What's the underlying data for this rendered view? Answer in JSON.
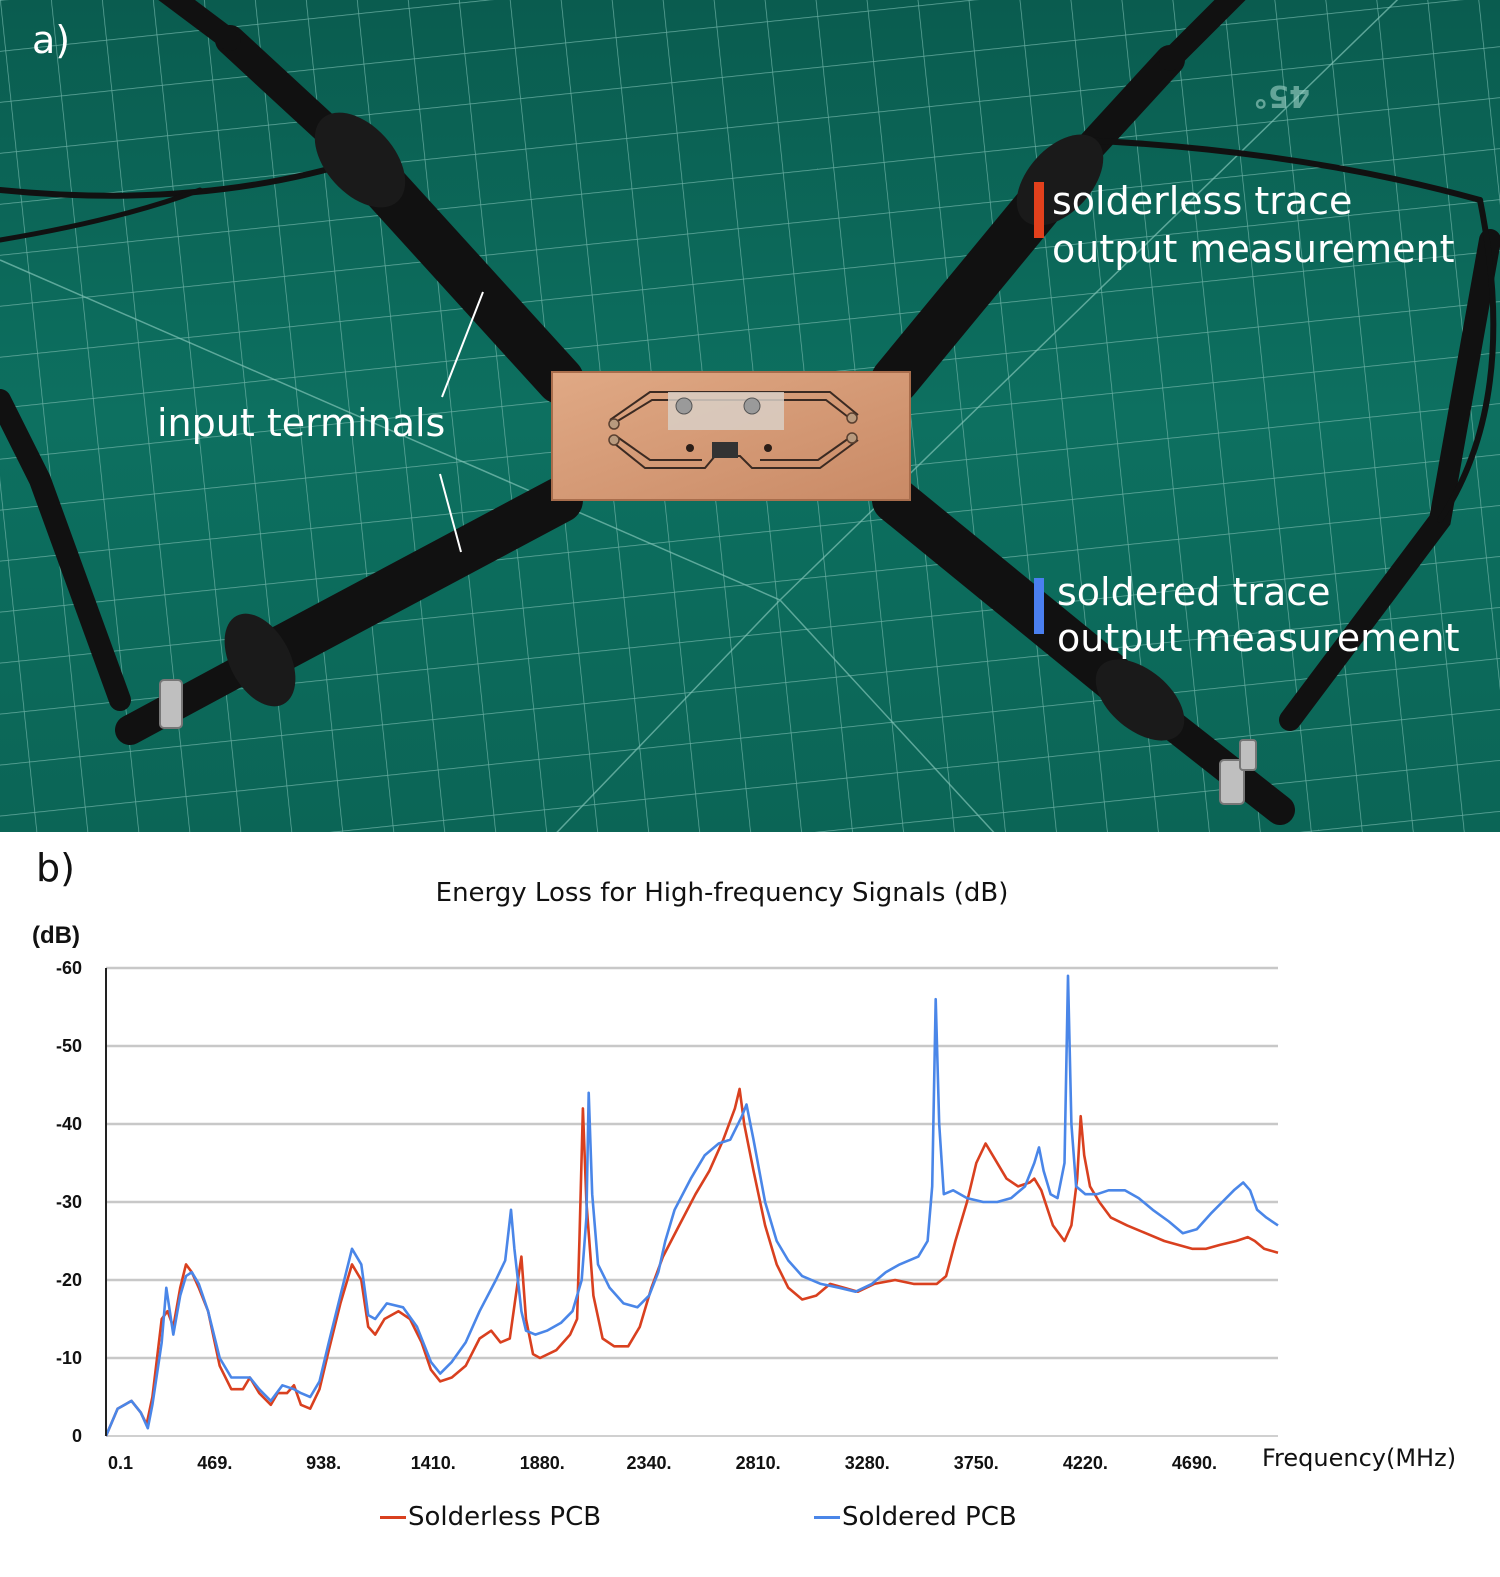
{
  "panel_a": {
    "letter": "a)",
    "labels": {
      "input_terminals": "input terminals",
      "solderless_line1": "solderless trace",
      "solderless_line2": "output measurement",
      "soldered_line1": "soldered trace",
      "soldered_line2": "output measurement"
    },
    "colors": {
      "solderless_marker": "#e2401c",
      "soldered_marker": "#4a7ff0",
      "mat": "#0c6b5c"
    }
  },
  "panel_b": {
    "letter": "b)"
  },
  "chart_data": {
    "type": "line",
    "title": "Energy Loss for High-frequency Signals (dB)",
    "ylabel": "(dB)",
    "xlabel": "Frequency(MHz)",
    "x_range": [
      0.1,
      5050
    ],
    "ylim": [
      0,
      -60
    ],
    "y_ticks": [
      "0",
      "-10",
      "-20",
      "-30",
      "-40",
      "-50",
      "-60"
    ],
    "x_ticks": [
      {
        "label": "0.1",
        "value": 0.1
      },
      {
        "label": "469.",
        "value": 469
      },
      {
        "label": "938.",
        "value": 938
      },
      {
        "label": "1410.",
        "value": 1410
      },
      {
        "label": "1880.",
        "value": 1880
      },
      {
        "label": "2340.",
        "value": 2340
      },
      {
        "label": "2810.",
        "value": 2810
      },
      {
        "label": "3280.",
        "value": 3280
      },
      {
        "label": "3750.",
        "value": 3750
      },
      {
        "label": "4220.",
        "value": 4220
      },
      {
        "label": "4690.",
        "value": 4690
      }
    ],
    "grid": true,
    "legend_position": "bottom",
    "series": [
      {
        "name": "Solderless PCB",
        "color": "#d9401f",
        "points": [
          [
            0.1,
            0
          ],
          [
            50,
            -3.5
          ],
          [
            110,
            -4.5
          ],
          [
            150,
            -3
          ],
          [
            175,
            -1.5
          ],
          [
            200,
            -5
          ],
          [
            240,
            -15
          ],
          [
            265,
            -16
          ],
          [
            290,
            -14
          ],
          [
            320,
            -19
          ],
          [
            345,
            -22
          ],
          [
            370,
            -21
          ],
          [
            400,
            -19
          ],
          [
            440,
            -16
          ],
          [
            490,
            -9
          ],
          [
            540,
            -6
          ],
          [
            590,
            -6
          ],
          [
            620,
            -7.5
          ],
          [
            660,
            -5.5
          ],
          [
            710,
            -4
          ],
          [
            740,
            -5.5
          ],
          [
            780,
            -5.5
          ],
          [
            810,
            -6.5
          ],
          [
            840,
            -4
          ],
          [
            880,
            -3.5
          ],
          [
            920,
            -6
          ],
          [
            960,
            -11
          ],
          [
            1010,
            -17
          ],
          [
            1060,
            -22
          ],
          [
            1100,
            -20
          ],
          [
            1130,
            -14
          ],
          [
            1160,
            -13
          ],
          [
            1200,
            -15
          ],
          [
            1260,
            -16
          ],
          [
            1310,
            -15
          ],
          [
            1360,
            -12
          ],
          [
            1400,
            -8.5
          ],
          [
            1440,
            -7
          ],
          [
            1490,
            -7.5
          ],
          [
            1550,
            -9
          ],
          [
            1610,
            -12.5
          ],
          [
            1660,
            -13.5
          ],
          [
            1700,
            -12
          ],
          [
            1740,
            -12.5
          ],
          [
            1780,
            -21
          ],
          [
            1790,
            -23
          ],
          [
            1810,
            -15
          ],
          [
            1840,
            -10.5
          ],
          [
            1870,
            -10
          ],
          [
            1940,
            -11
          ],
          [
            2000,
            -13
          ],
          [
            2030,
            -15
          ],
          [
            2040,
            -25
          ],
          [
            2055,
            -42
          ],
          [
            2070,
            -30
          ],
          [
            2100,
            -18
          ],
          [
            2140,
            -12.5
          ],
          [
            2190,
            -11.5
          ],
          [
            2250,
            -11.5
          ],
          [
            2300,
            -14
          ],
          [
            2350,
            -19
          ],
          [
            2400,
            -23
          ],
          [
            2470,
            -27
          ],
          [
            2540,
            -31
          ],
          [
            2600,
            -34
          ],
          [
            2660,
            -38
          ],
          [
            2710,
            -42
          ],
          [
            2730,
            -44.5
          ],
          [
            2750,
            -40
          ],
          [
            2790,
            -34
          ],
          [
            2840,
            -27
          ],
          [
            2890,
            -22
          ],
          [
            2940,
            -19
          ],
          [
            3000,
            -17.5
          ],
          [
            3060,
            -18
          ],
          [
            3120,
            -19.5
          ],
          [
            3180,
            -19
          ],
          [
            3240,
            -18.5
          ],
          [
            3310,
            -19.5
          ],
          [
            3400,
            -20
          ],
          [
            3480,
            -19.5
          ],
          [
            3580,
            -19.5
          ],
          [
            3620,
            -20.5
          ],
          [
            3660,
            -25
          ],
          [
            3710,
            -30
          ],
          [
            3750,
            -35
          ],
          [
            3790,
            -37.5
          ],
          [
            3830,
            -35.5
          ],
          [
            3880,
            -33
          ],
          [
            3930,
            -32
          ],
          [
            3980,
            -32.5
          ],
          [
            4000,
            -33
          ],
          [
            4030,
            -31.5
          ],
          [
            4080,
            -27
          ],
          [
            4130,
            -25
          ],
          [
            4160,
            -27
          ],
          [
            4185,
            -33
          ],
          [
            4200,
            -41
          ],
          [
            4215,
            -36
          ],
          [
            4240,
            -32
          ],
          [
            4280,
            -30
          ],
          [
            4330,
            -28
          ],
          [
            4400,
            -27
          ],
          [
            4480,
            -26
          ],
          [
            4560,
            -25
          ],
          [
            4620,
            -24.5
          ],
          [
            4680,
            -24
          ],
          [
            4740,
            -24
          ],
          [
            4800,
            -24.5
          ],
          [
            4870,
            -25
          ],
          [
            4920,
            -25.5
          ],
          [
            4950,
            -25
          ],
          [
            4990,
            -24
          ],
          [
            5050,
            -23.5
          ]
        ]
      },
      {
        "name": "Soldered PCB",
        "color": "#4a86e8",
        "points": [
          [
            0.1,
            0
          ],
          [
            50,
            -3.5
          ],
          [
            110,
            -4.5
          ],
          [
            150,
            -3
          ],
          [
            180,
            -1
          ],
          [
            200,
            -4
          ],
          [
            240,
            -12
          ],
          [
            260,
            -19
          ],
          [
            275,
            -16
          ],
          [
            290,
            -13
          ],
          [
            320,
            -18
          ],
          [
            345,
            -20.5
          ],
          [
            370,
            -21
          ],
          [
            400,
            -19.5
          ],
          [
            440,
            -16
          ],
          [
            490,
            -10
          ],
          [
            540,
            -7.5
          ],
          [
            590,
            -7.5
          ],
          [
            620,
            -7.5
          ],
          [
            660,
            -6
          ],
          [
            710,
            -4.5
          ],
          [
            760,
            -6.5
          ],
          [
            810,
            -6
          ],
          [
            840,
            -5.5
          ],
          [
            880,
            -5
          ],
          [
            920,
            -7
          ],
          [
            960,
            -12
          ],
          [
            1010,
            -18
          ],
          [
            1060,
            -24
          ],
          [
            1100,
            -22
          ],
          [
            1130,
            -15.5
          ],
          [
            1160,
            -15
          ],
          [
            1210,
            -17
          ],
          [
            1280,
            -16.5
          ],
          [
            1340,
            -14
          ],
          [
            1400,
            -9.5
          ],
          [
            1440,
            -8
          ],
          [
            1490,
            -9.5
          ],
          [
            1550,
            -12
          ],
          [
            1610,
            -16
          ],
          [
            1680,
            -20
          ],
          [
            1720,
            -22.5
          ],
          [
            1745,
            -29
          ],
          [
            1760,
            -24
          ],
          [
            1790,
            -16
          ],
          [
            1810,
            -13.5
          ],
          [
            1850,
            -13
          ],
          [
            1900,
            -13.5
          ],
          [
            1960,
            -14.5
          ],
          [
            2010,
            -16
          ],
          [
            2050,
            -20
          ],
          [
            2070,
            -28
          ],
          [
            2080,
            -44
          ],
          [
            2095,
            -31
          ],
          [
            2120,
            -22
          ],
          [
            2170,
            -19
          ],
          [
            2230,
            -17
          ],
          [
            2290,
            -16.5
          ],
          [
            2340,
            -18
          ],
          [
            2380,
            -21
          ],
          [
            2410,
            -25
          ],
          [
            2450,
            -29
          ],
          [
            2520,
            -33
          ],
          [
            2580,
            -36
          ],
          [
            2640,
            -37.5
          ],
          [
            2690,
            -38
          ],
          [
            2740,
            -41
          ],
          [
            2760,
            -42.5
          ],
          [
            2790,
            -38
          ],
          [
            2840,
            -30
          ],
          [
            2890,
            -25
          ],
          [
            2940,
            -22.5
          ],
          [
            3000,
            -20.5
          ],
          [
            3080,
            -19.5
          ],
          [
            3160,
            -19
          ],
          [
            3230,
            -18.5
          ],
          [
            3300,
            -19.5
          ],
          [
            3360,
            -21
          ],
          [
            3420,
            -22
          ],
          [
            3500,
            -23
          ],
          [
            3540,
            -25
          ],
          [
            3560,
            -32
          ],
          [
            3575,
            -56
          ],
          [
            3590,
            -40
          ],
          [
            3610,
            -31
          ],
          [
            3650,
            -31.5
          ],
          [
            3710,
            -30.5
          ],
          [
            3780,
            -30
          ],
          [
            3840,
            -30
          ],
          [
            3900,
            -30.5
          ],
          [
            3960,
            -32
          ],
          [
            4000,
            -35
          ],
          [
            4020,
            -37
          ],
          [
            4040,
            -34
          ],
          [
            4070,
            -31
          ],
          [
            4100,
            -30.5
          ],
          [
            4130,
            -35
          ],
          [
            4145,
            -59
          ],
          [
            4160,
            -40
          ],
          [
            4180,
            -32
          ],
          [
            4220,
            -31
          ],
          [
            4270,
            -31
          ],
          [
            4320,
            -31.5
          ],
          [
            4390,
            -31.5
          ],
          [
            4450,
            -30.5
          ],
          [
            4510,
            -29
          ],
          [
            4580,
            -27.5
          ],
          [
            4640,
            -26
          ],
          [
            4700,
            -26.5
          ],
          [
            4760,
            -28.5
          ],
          [
            4810,
            -30
          ],
          [
            4860,
            -31.5
          ],
          [
            4900,
            -32.5
          ],
          [
            4930,
            -31.5
          ],
          [
            4960,
            -29
          ],
          [
            5000,
            -28
          ],
          [
            5050,
            -27
          ]
        ]
      }
    ]
  }
}
